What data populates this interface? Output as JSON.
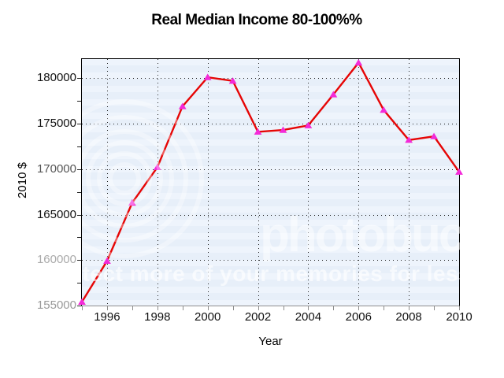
{
  "chart_data": {
    "type": "line",
    "title": "Real Median Income 80-100%%",
    "xlabel": "Year",
    "ylabel": "2010 $",
    "xlim": [
      1995,
      2010
    ],
    "ylim": [
      155000,
      182100
    ],
    "grid": "dotted, at labeled major ticks",
    "legend": "none",
    "x": [
      1995,
      1996,
      1997,
      1998,
      1999,
      2000,
      2001,
      2002,
      2003,
      2004,
      2005,
      2006,
      2007,
      2008,
      2009,
      2010
    ],
    "series": [
      {
        "name": "Real Median Income 80-100%",
        "values": [
          155400,
          159900,
          166300,
          170200,
          176900,
          180100,
          179700,
          174100,
          174300,
          174800,
          178200,
          181700,
          176500,
          173200,
          173600,
          169700
        ]
      }
    ],
    "y_axis": {
      "title": "2010 $",
      "tick_values": [
        155000,
        157500,
        160000,
        162500,
        165000,
        167500,
        170000,
        172500,
        175000,
        177500,
        180000
      ],
      "labels": [
        {
          "value": 180000,
          "text": "180000",
          "color": "#111111"
        },
        {
          "value": 175000,
          "text": "175000",
          "color": "#111111"
        },
        {
          "value": 170000,
          "text": "170000",
          "color": "#555555"
        },
        {
          "value": 165000,
          "text": "165000",
          "color": "#111111"
        },
        {
          "value": 160000,
          "text": "160000",
          "color": "#aaaaaa"
        },
        {
          "value": 155000,
          "text": "155000",
          "color": "#999999"
        }
      ],
      "gridline_values": [
        160000,
        165000,
        170000,
        175000,
        180000
      ]
    },
    "x_axis": {
      "title": "Year",
      "tick_values": [
        1995,
        1996,
        1997,
        1998,
        1999,
        2000,
        2001,
        2002,
        2003,
        2004,
        2005,
        2006,
        2007,
        2008,
        2009,
        2010
      ],
      "labels": [
        {
          "value": 1996,
          "text": "1996"
        },
        {
          "value": 1998,
          "text": "1998"
        },
        {
          "value": 2000,
          "text": "2000"
        },
        {
          "value": 2002,
          "text": "2002"
        },
        {
          "value": 2004,
          "text": "2004"
        },
        {
          "value": 2006,
          "text": "2006"
        },
        {
          "value": 2008,
          "text": "2008"
        },
        {
          "value": 2010,
          "text": "2010"
        }
      ],
      "gridline_values": [
        1996,
        1998,
        2000,
        2002,
        2004,
        2006,
        2008
      ]
    },
    "colors": {
      "line": "#e60505",
      "marker": "#f32ad8",
      "plot_bg": "#e9f1fa",
      "grid_dots": "#1d1d1d",
      "axis": "#000000",
      "axis_bottom": "#8d8d8d",
      "title_text": "#000000"
    }
  },
  "watermark": {
    "logo_text": "photobucket",
    "banner_text": "protect more of your memories for less"
  }
}
